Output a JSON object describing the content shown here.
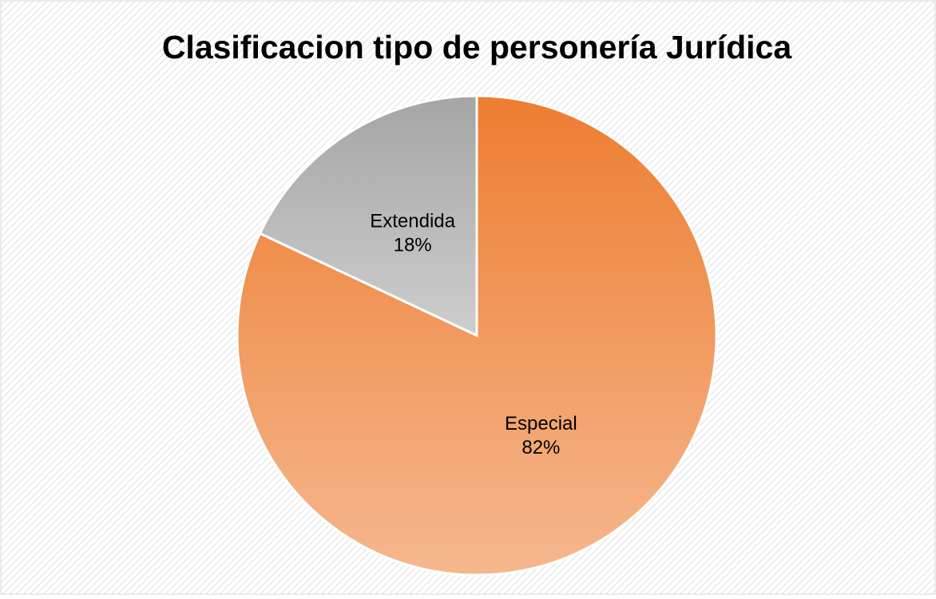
{
  "chart_data": {
    "type": "pie",
    "title": "Clasificacion tipo de personería Jurídica",
    "categories": [
      "Especial",
      "Extendida"
    ],
    "values": [
      82,
      18
    ],
    "value_labels": [
      "82%",
      "18%"
    ],
    "colors": [
      "#ED7D31",
      "#A5A5A5"
    ]
  }
}
